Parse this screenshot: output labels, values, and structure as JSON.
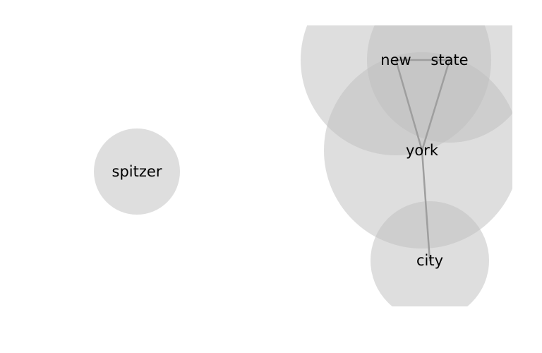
{
  "graph": {
    "nodes": [
      {
        "id": "spitzer",
        "label": "spitzer"
      },
      {
        "id": "new",
        "label": "new"
      },
      {
        "id": "state",
        "label": "state"
      },
      {
        "id": "york",
        "label": "york"
      },
      {
        "id": "city",
        "label": "city"
      }
    ],
    "edges": [
      {
        "source": "new",
        "target": "state"
      },
      {
        "source": "new",
        "target": "york"
      },
      {
        "source": "state",
        "target": "york"
      },
      {
        "source": "york",
        "target": "city"
      }
    ]
  },
  "colors": {
    "circle_fill": "#bdbdbd",
    "edge": "#9e9e9e",
    "label": "#000000",
    "background": "#ffffff"
  }
}
